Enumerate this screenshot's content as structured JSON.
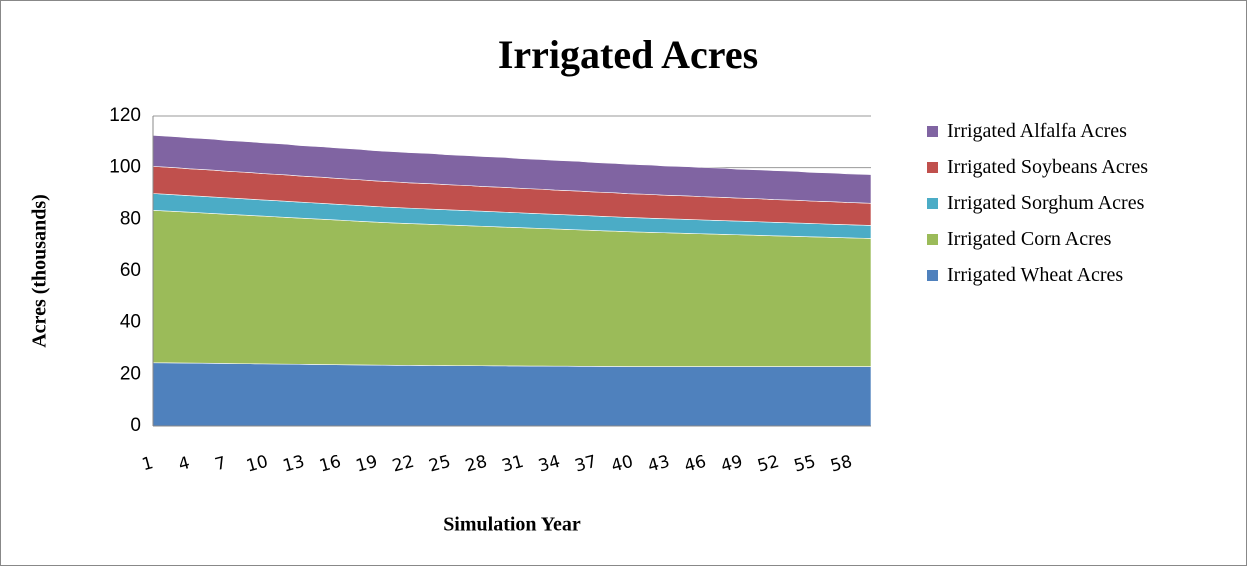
{
  "chart_data": {
    "type": "stacked_area",
    "title": "Irrigated Acres",
    "y_label": "Acres (thousands)",
    "x_label": "Simulation Year",
    "categories": [
      1,
      null,
      null,
      4,
      null,
      null,
      7,
      null,
      null,
      10,
      null,
      null,
      13,
      null,
      null,
      16,
      null,
      null,
      19,
      null,
      null,
      22,
      null,
      null,
      25,
      null,
      null,
      28,
      null,
      null,
      31,
      null,
      null,
      34,
      null,
      null,
      37,
      null,
      null,
      40,
      null,
      null,
      43,
      null,
      null,
      46,
      null,
      null,
      49,
      null,
      null,
      52,
      null,
      null,
      55,
      null,
      null,
      58,
      null,
      null
    ],
    "ylim": [
      0,
      120
    ],
    "yticks": [
      0,
      20,
      40,
      60,
      80,
      100,
      120
    ],
    "grid": true,
    "series": [
      {
        "name": "Irrigated Wheat Acres",
        "color": "#4f81bd",
        "values": [
          24.5,
          24.45,
          24.4,
          24.35,
          24.3,
          24.25,
          24.2,
          24.15,
          24.1,
          24.05,
          24.0,
          23.95,
          23.9,
          23.85,
          23.8,
          23.75,
          23.7,
          23.65,
          23.6,
          23.55,
          23.5,
          23.47,
          23.45,
          23.42,
          23.4,
          23.37,
          23.35,
          23.32,
          23.3,
          23.27,
          23.25,
          23.22,
          23.2,
          23.17,
          23.15,
          23.12,
          23.1,
          23.07,
          23.05,
          23.02,
          23.0,
          23.0,
          23.0,
          23.0,
          23.0,
          23.0,
          23.0,
          23.0,
          23.0,
          23.0,
          23.0,
          23.0,
          23.0,
          23.0,
          23.0,
          23.0,
          23.0,
          23.0,
          23.0,
          23.0
        ]
      },
      {
        "name": "Irrigated Corn Acres",
        "color": "#9bbb59",
        "values": [
          59,
          58.8,
          58.6,
          58.4,
          58.2,
          58,
          57.8,
          57.6,
          57.4,
          57.2,
          57,
          56.8,
          56.6,
          56.4,
          56.2,
          56,
          55.8,
          55.6,
          55.4,
          55.2,
          55.05,
          54.9,
          54.75,
          54.6,
          54.45,
          54.3,
          54.15,
          54,
          53.85,
          53.7,
          53.55,
          53.4,
          53.25,
          53.1,
          52.95,
          52.8,
          52.65,
          52.5,
          52.35,
          52.2,
          52.07,
          51.94,
          51.81,
          51.68,
          51.55,
          51.42,
          51.29,
          51.16,
          51.03,
          50.9,
          50.77,
          50.64,
          50.51,
          50.38,
          50.25,
          50.12,
          49.99,
          49.86,
          49.73,
          49.6
        ]
      },
      {
        "name": "Irrigated Sorghum Acres",
        "color": "#4bacc6",
        "values": [
          6.5,
          6.47,
          6.45,
          6.42,
          6.4,
          6.37,
          6.35,
          6.32,
          6.3,
          6.27,
          6.25,
          6.22,
          6.2,
          6.17,
          6.15,
          6.12,
          6.1,
          6.07,
          6.05,
          6.02,
          6.0,
          5.97,
          5.95,
          5.92,
          5.9,
          5.87,
          5.85,
          5.82,
          5.8,
          5.77,
          5.75,
          5.72,
          5.7,
          5.67,
          5.65,
          5.62,
          5.6,
          5.57,
          5.55,
          5.52,
          5.5,
          5.47,
          5.45,
          5.42,
          5.4,
          5.37,
          5.35,
          5.32,
          5.3,
          5.27,
          5.25,
          5.22,
          5.2,
          5.17,
          5.15,
          5.12,
          5.1,
          5.07,
          5.05,
          5.02
        ]
      },
      {
        "name": "Irrigated Soybeans Acres",
        "color": "#c0504d",
        "values": [
          10.5,
          10.5,
          10.5,
          10.4,
          10.4,
          10.4,
          10.3,
          10.3,
          10.3,
          10.2,
          10.2,
          10.2,
          10.1,
          10.1,
          10.1,
          10.0,
          10.0,
          10.0,
          9.9,
          9.9,
          9.9,
          9.8,
          9.8,
          9.8,
          9.7,
          9.7,
          9.7,
          9.6,
          9.6,
          9.6,
          9.5,
          9.5,
          9.5,
          9.4,
          9.4,
          9.4,
          9.3,
          9.3,
          9.3,
          9.2,
          9.2,
          9.2,
          9.1,
          9.1,
          9.1,
          9.0,
          9.0,
          9.0,
          8.9,
          8.9,
          8.9,
          8.8,
          8.8,
          8.8,
          8.7,
          8.7,
          8.7,
          8.6,
          8.6,
          8.6
        ]
      },
      {
        "name": "Irrigated Alfalfa Acres",
        "color": "#8064a2",
        "values": [
          12.0,
          12.0,
          12.0,
          12.0,
          12.0,
          12.0,
          11.9,
          11.9,
          11.9,
          11.9,
          11.9,
          11.9,
          11.8,
          11.8,
          11.8,
          11.8,
          11.8,
          11.8,
          11.7,
          11.7,
          11.7,
          11.7,
          11.7,
          11.7,
          11.6,
          11.6,
          11.6,
          11.6,
          11.6,
          11.6,
          11.5,
          11.5,
          11.5,
          11.5,
          11.5,
          11.5,
          11.4,
          11.4,
          11.4,
          11.4,
          11.4,
          11.4,
          11.3,
          11.3,
          11.3,
          11.3,
          11.3,
          11.3,
          11.2,
          11.2,
          11.2,
          11.2,
          11.2,
          11.2,
          11.1,
          11.1,
          11.1,
          11.1,
          11.1,
          11.1
        ]
      }
    ]
  }
}
